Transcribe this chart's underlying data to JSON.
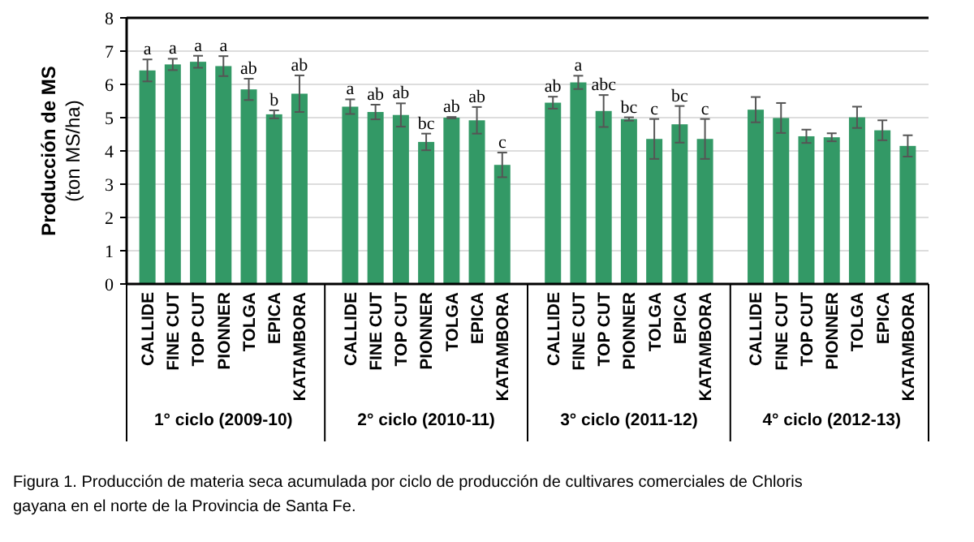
{
  "chart_data": {
    "type": "bar",
    "ylabel": "Producción de MS\n(ton MS/ha)",
    "categories": [
      "CALLIDE",
      "FINE CUT",
      "TOP CUT",
      "PIONNER",
      "TOLGA",
      "EPICA",
      "KATAMBORA",
      null,
      "CALLIDE",
      "FINE CUT",
      "TOP CUT",
      "PIONNER",
      "TOLGA",
      "EPICA",
      "KATAMBORA",
      null,
      "CALLIDE",
      "FINE CUT",
      "TOP CUT",
      "PIONNER",
      "TOLGA",
      "EPICA",
      "KATAMBORA",
      null,
      "CALLIDE",
      "FINE CUT",
      "TOP CUT",
      "PIONNER",
      "TOLGA",
      "EPICA",
      "KATAMBORA"
    ],
    "values": [
      6.42,
      6.6,
      6.68,
      6.55,
      5.85,
      5.1,
      5.72,
      null,
      5.33,
      5.17,
      5.08,
      4.27,
      5.0,
      4.92,
      3.58,
      null,
      5.45,
      6.06,
      5.2,
      4.96,
      4.36,
      4.8,
      4.36,
      null,
      5.24,
      4.99,
      4.44,
      4.41,
      5.01,
      4.62,
      4.15
    ],
    "errors": [
      0.33,
      0.17,
      0.18,
      0.3,
      0.32,
      0.12,
      0.55,
      null,
      0.22,
      0.22,
      0.35,
      0.25,
      0.02,
      0.4,
      0.37,
      null,
      0.18,
      0.2,
      0.48,
      0.05,
      0.6,
      0.55,
      0.6,
      null,
      0.38,
      0.45,
      0.2,
      0.12,
      0.32,
      0.3,
      0.32
    ],
    "value_labels": [
      "a",
      "a",
      "a",
      "a",
      "ab",
      "b",
      "ab",
      null,
      "a",
      "ab",
      "ab",
      "bc",
      "ab",
      "ab",
      "c",
      null,
      "ab",
      "a",
      "abc",
      "bc",
      "c",
      "bc",
      "c",
      null,
      null,
      null,
      null,
      null,
      null,
      null,
      null
    ],
    "color": "#339966",
    "ylim": [
      0,
      8
    ],
    "yticks": [
      0,
      1,
      2,
      3,
      4,
      5,
      6,
      7,
      8
    ],
    "grid": "y",
    "annotations": [
      "1° ciclo (2009-10)",
      "2° ciclo (2010-11)",
      "3° ciclo (2011-12)",
      "4° ciclo (2012-13)",
      "Figura 1. Producción de materia seca acumulada por ciclo de producción de cultivares comerciales de Chloris gayana en el norte de la Provincia de Santa Fe."
    ]
  }
}
